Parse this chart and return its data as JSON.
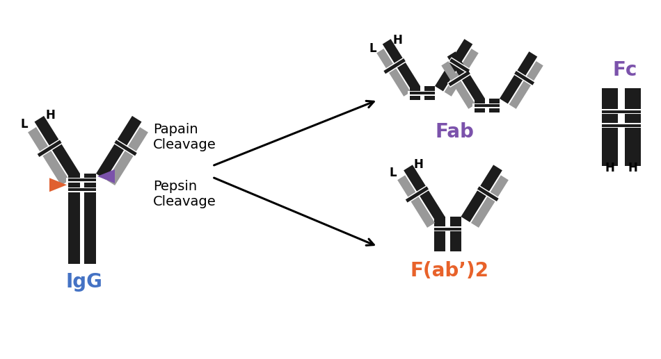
{
  "bg_color": "#ffffff",
  "igg_label": "IgG",
  "igg_label_color": "#4472C4",
  "fab2_label": "F(ab’)2",
  "fab2_label_color": "#E8622A",
  "fab_label": "Fab",
  "fab_label_color": "#7B52AB",
  "fc_label": "Fc",
  "fc_label_color": "#7B52AB",
  "pepsin_text": "Pepsin\nCleavage",
  "papain_text": "Papain\nCleavage",
  "dark_color": "#1c1c1c",
  "mid_color": "#4a4a4a",
  "light_color": "#999999",
  "lighter_color": "#cccccc",
  "orange_color": "#E06030",
  "purple_color": "#7B52AB"
}
